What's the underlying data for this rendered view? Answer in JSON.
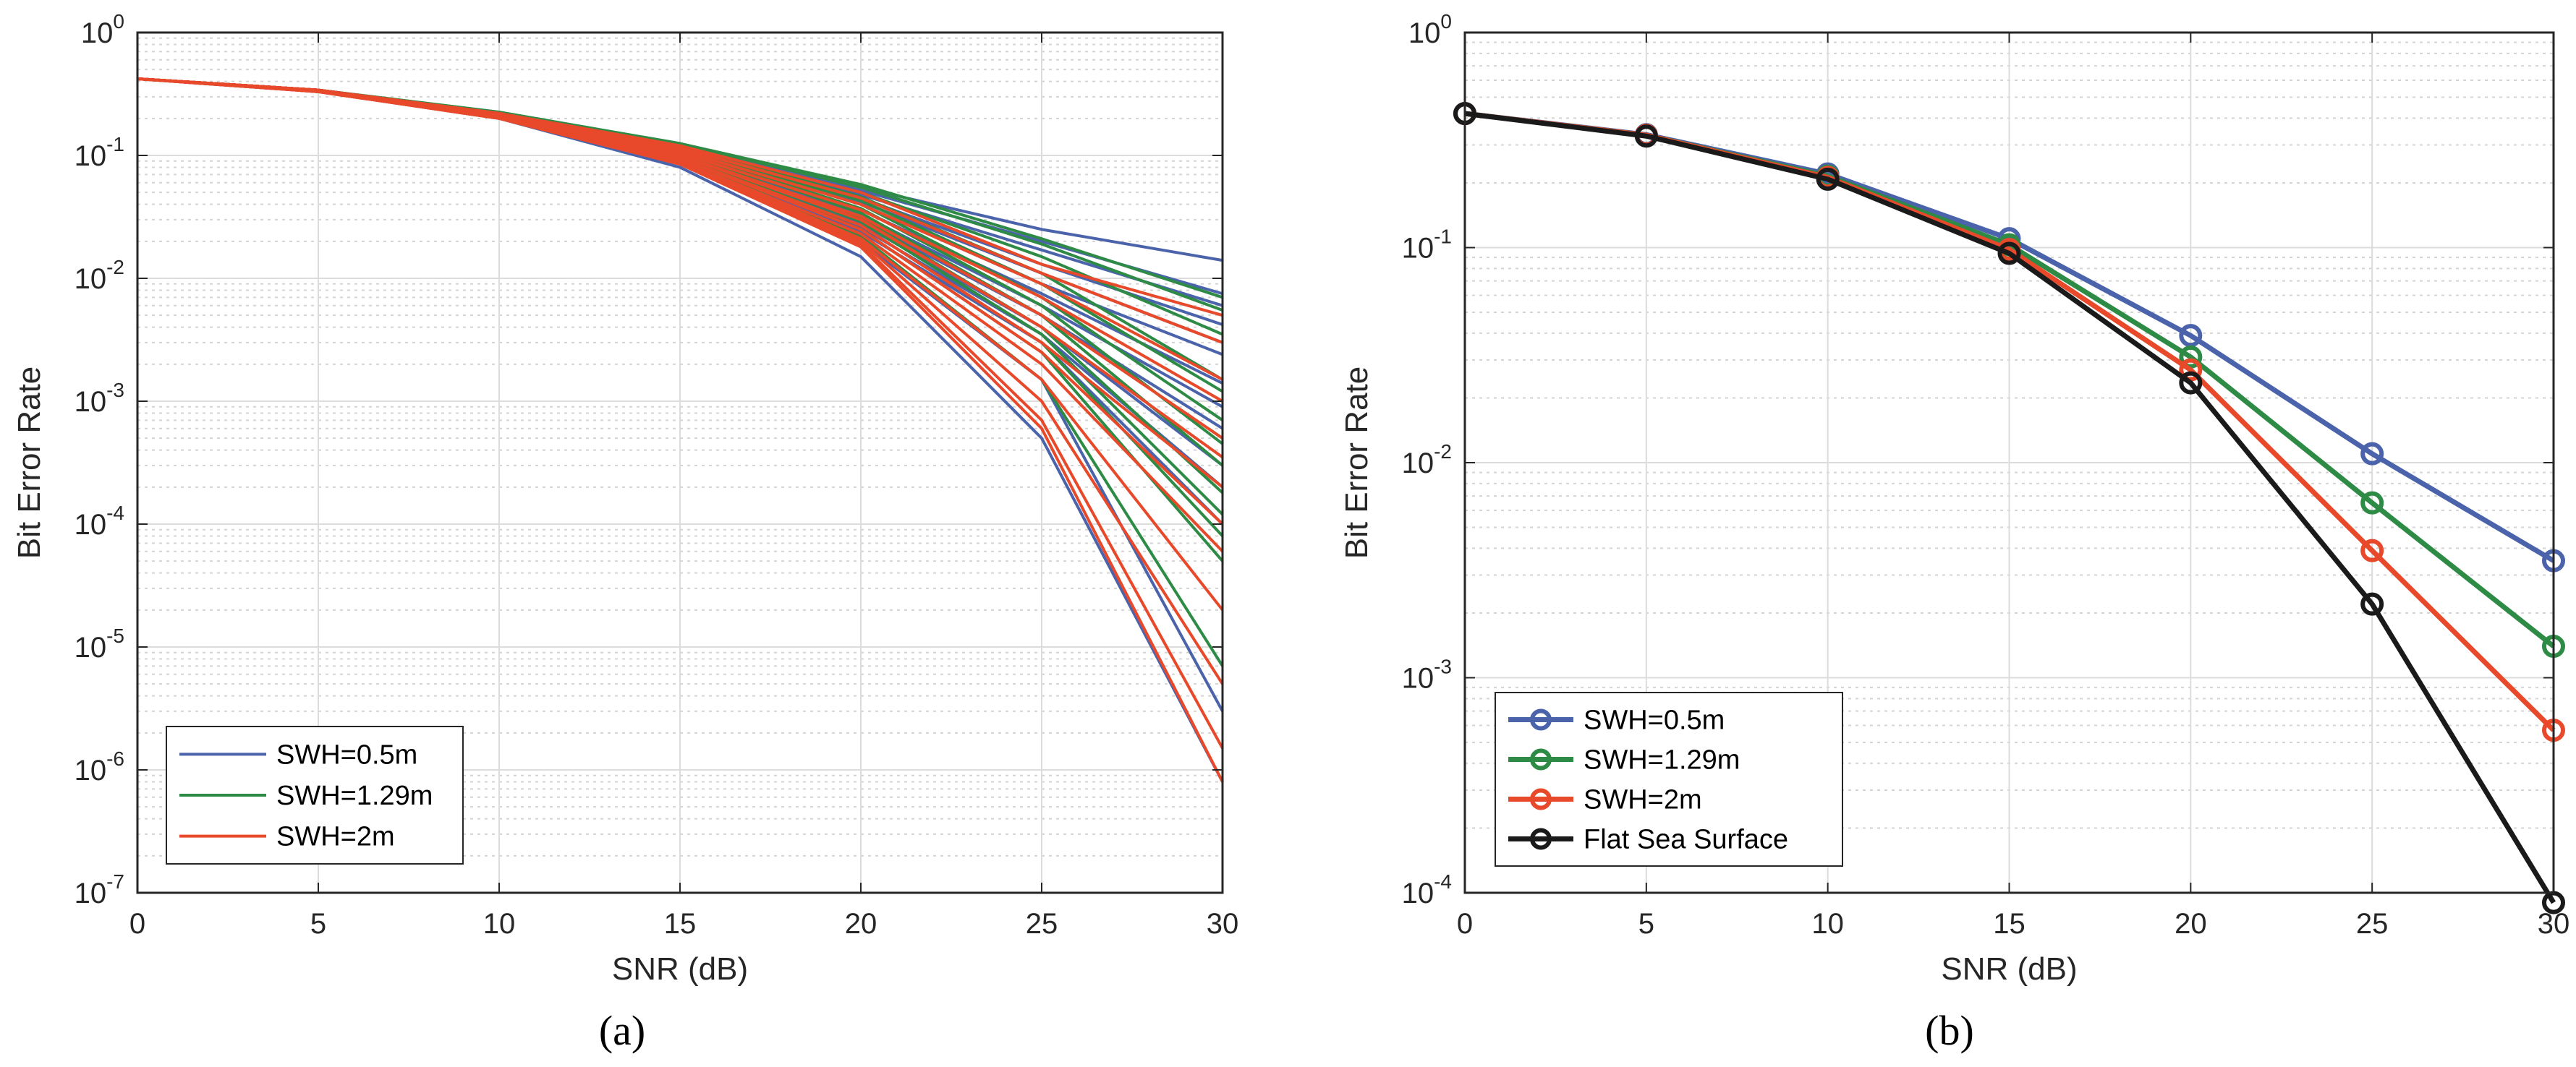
{
  "chart_data": [
    {
      "type": "line",
      "panel": "a",
      "caption": "(a)",
      "xlabel": "SNR (dB)",
      "ylabel": "Bit Error Rate",
      "xlim": [
        0,
        30
      ],
      "ylim": [
        1e-07,
        1
      ],
      "yscale": "log",
      "xticks": [
        0,
        5,
        10,
        15,
        20,
        25,
        30
      ],
      "xtick_labels": [
        "0",
        "5",
        "10",
        "15",
        "20",
        "25",
        "30"
      ],
      "yticks": [
        1e-07,
        1e-06,
        1e-05,
        0.0001,
        0.001,
        0.01,
        0.1,
        1
      ],
      "ytick_labels": [
        {
          "base": "10",
          "exp": "-7"
        },
        {
          "base": "10",
          "exp": "-6"
        },
        {
          "base": "10",
          "exp": "-5"
        },
        {
          "base": "10",
          "exp": "-4"
        },
        {
          "base": "10",
          "exp": "-3"
        },
        {
          "base": "10",
          "exp": "-2"
        },
        {
          "base": "10",
          "exp": "-1"
        },
        {
          "base": "10",
          "exp": "0"
        }
      ],
      "grid": true,
      "legend_position": "bottom-left",
      "x": [
        0,
        5,
        10,
        15,
        20,
        25,
        30
      ],
      "groups": [
        {
          "name": "SWH=0.5m",
          "color": "#4A63AB",
          "curves": [
            [
              0.42,
              0.34,
              0.22,
              0.12,
              0.055,
              0.025,
              0.014
            ],
            [
              0.42,
              0.34,
              0.22,
              0.12,
              0.052,
              0.02,
              0.0075
            ],
            [
              0.42,
              0.34,
              0.22,
              0.115,
              0.048,
              0.017,
              0.006
            ],
            [
              0.42,
              0.34,
              0.22,
              0.115,
              0.045,
              0.013,
              0.0042
            ],
            [
              0.42,
              0.34,
              0.22,
              0.11,
              0.042,
              0.011,
              0.003
            ],
            [
              0.42,
              0.34,
              0.215,
              0.11,
              0.04,
              0.009,
              0.0024
            ],
            [
              0.42,
              0.34,
              0.215,
              0.105,
              0.036,
              0.0075,
              0.0014
            ],
            [
              0.42,
              0.34,
              0.215,
              0.105,
              0.033,
              0.006,
              0.0009
            ],
            [
              0.42,
              0.34,
              0.21,
              0.1,
              0.03,
              0.005,
              0.0006
            ],
            [
              0.42,
              0.34,
              0.21,
              0.1,
              0.028,
              0.004,
              0.0003
            ],
            [
              0.42,
              0.34,
              0.21,
              0.098,
              0.026,
              0.0035,
              0.0002
            ],
            [
              0.42,
              0.34,
              0.21,
              0.095,
              0.024,
              0.003,
              0.0001
            ],
            [
              0.42,
              0.34,
              0.21,
              0.09,
              0.02,
              0.0015,
              3e-06
            ],
            [
              0.42,
              0.33,
              0.2,
              0.08,
              0.015,
              0.0005,
              8e-07
            ]
          ]
        },
        {
          "name": "SWH=1.29m",
          "color": "#2E8B45",
          "curves": [
            [
              0.42,
              0.34,
              0.225,
              0.125,
              0.058,
              0.021,
              0.007
            ],
            [
              0.42,
              0.34,
              0.225,
              0.125,
              0.055,
              0.019,
              0.0055
            ],
            [
              0.42,
              0.34,
              0.22,
              0.12,
              0.05,
              0.015,
              0.0035
            ],
            [
              0.42,
              0.34,
              0.22,
              0.12,
              0.046,
              0.011,
              0.0015
            ],
            [
              0.42,
              0.34,
              0.22,
              0.115,
              0.043,
              0.009,
              0.0012
            ],
            [
              0.42,
              0.34,
              0.22,
              0.115,
              0.04,
              0.007,
              0.0007
            ],
            [
              0.42,
              0.34,
              0.215,
              0.11,
              0.037,
              0.006,
              0.00045
            ],
            [
              0.42,
              0.34,
              0.215,
              0.11,
              0.034,
              0.005,
              0.0003
            ],
            [
              0.42,
              0.34,
              0.215,
              0.105,
              0.031,
              0.004,
              0.00018
            ],
            [
              0.42,
              0.34,
              0.21,
              0.105,
              0.029,
              0.0035,
              0.00012
            ],
            [
              0.42,
              0.34,
              0.21,
              0.1,
              0.027,
              0.003,
              8e-05
            ],
            [
              0.42,
              0.34,
              0.21,
              0.1,
              0.025,
              0.0025,
              5e-05
            ],
            [
              0.42,
              0.34,
              0.21,
              0.095,
              0.022,
              0.0015,
              7e-06
            ]
          ]
        },
        {
          "name": "SWH=2m",
          "color": "#E8492A",
          "curves": [
            [
              0.42,
              0.34,
              0.22,
              0.12,
              0.05,
              0.013,
              0.005
            ],
            [
              0.42,
              0.34,
              0.22,
              0.115,
              0.045,
              0.011,
              0.003
            ],
            [
              0.42,
              0.34,
              0.215,
              0.11,
              0.04,
              0.009,
              0.0015
            ],
            [
              0.42,
              0.34,
              0.215,
              0.105,
              0.036,
              0.007,
              0.001
            ],
            [
              0.42,
              0.34,
              0.21,
              0.1,
              0.032,
              0.005,
              0.0005
            ],
            [
              0.42,
              0.34,
              0.21,
              0.1,
              0.03,
              0.004,
              0.00035
            ],
            [
              0.42,
              0.34,
              0.21,
              0.095,
              0.027,
              0.003,
              0.0002
            ],
            [
              0.42,
              0.34,
              0.205,
              0.095,
              0.025,
              0.0025,
              0.0001
            ],
            [
              0.42,
              0.34,
              0.205,
              0.09,
              0.023,
              0.002,
              6e-05
            ],
            [
              0.42,
              0.34,
              0.205,
              0.09,
              0.021,
              0.0015,
              2e-05
            ],
            [
              0.42,
              0.33,
              0.2,
              0.088,
              0.02,
              0.001,
              5e-06
            ],
            [
              0.42,
              0.33,
              0.2,
              0.085,
              0.019,
              0.0007,
              1.5e-06
            ],
            [
              0.42,
              0.33,
              0.2,
              0.085,
              0.018,
              0.0006,
              8e-07
            ]
          ]
        }
      ],
      "legend": [
        {
          "label": "SWH=0.5m",
          "color": "#4A63AB"
        },
        {
          "label": "SWH=1.29m",
          "color": "#2E8B45"
        },
        {
          "label": "SWH=2m",
          "color": "#E8492A"
        }
      ]
    },
    {
      "type": "line",
      "panel": "b",
      "caption": "(b)",
      "xlabel": "SNR (dB)",
      "ylabel": "Bit Error Rate",
      "xlim": [
        0,
        30
      ],
      "ylim": [
        0.0001,
        1
      ],
      "yscale": "log",
      "xticks": [
        0,
        5,
        10,
        15,
        20,
        25,
        30
      ],
      "xtick_labels": [
        "0",
        "5",
        "10",
        "15",
        "20",
        "25",
        "30"
      ],
      "yticks": [
        0.0001,
        0.001,
        0.01,
        0.1,
        1
      ],
      "ytick_labels": [
        {
          "base": "10",
          "exp": "-4"
        },
        {
          "base": "10",
          "exp": "-3"
        },
        {
          "base": "10",
          "exp": "-2"
        },
        {
          "base": "10",
          "exp": "-1"
        },
        {
          "base": "10",
          "exp": "0"
        }
      ],
      "grid": true,
      "legend_position": "bottom-left",
      "marker": "circle",
      "x": [
        0,
        5,
        10,
        15,
        20,
        25,
        30
      ],
      "series": [
        {
          "name": "SWH=0.5m",
          "color": "#4A63AB",
          "values": [
            0.42,
            0.335,
            0.22,
            0.11,
            0.039,
            0.011,
            0.0035
          ]
        },
        {
          "name": "SWH=1.29m",
          "color": "#2E8B45",
          "values": [
            0.42,
            0.333,
            0.215,
            0.103,
            0.031,
            0.0065,
            0.0014
          ]
        },
        {
          "name": "SWH=2m",
          "color": "#E8492A",
          "values": [
            0.42,
            0.333,
            0.212,
            0.098,
            0.027,
            0.0039,
            0.00057
          ]
        },
        {
          "name": "Flat Sea Surface",
          "color": "#1A1A1A",
          "values": [
            0.42,
            0.33,
            0.208,
            0.094,
            0.0235,
            0.0022,
            9e-05
          ]
        }
      ]
    }
  ]
}
